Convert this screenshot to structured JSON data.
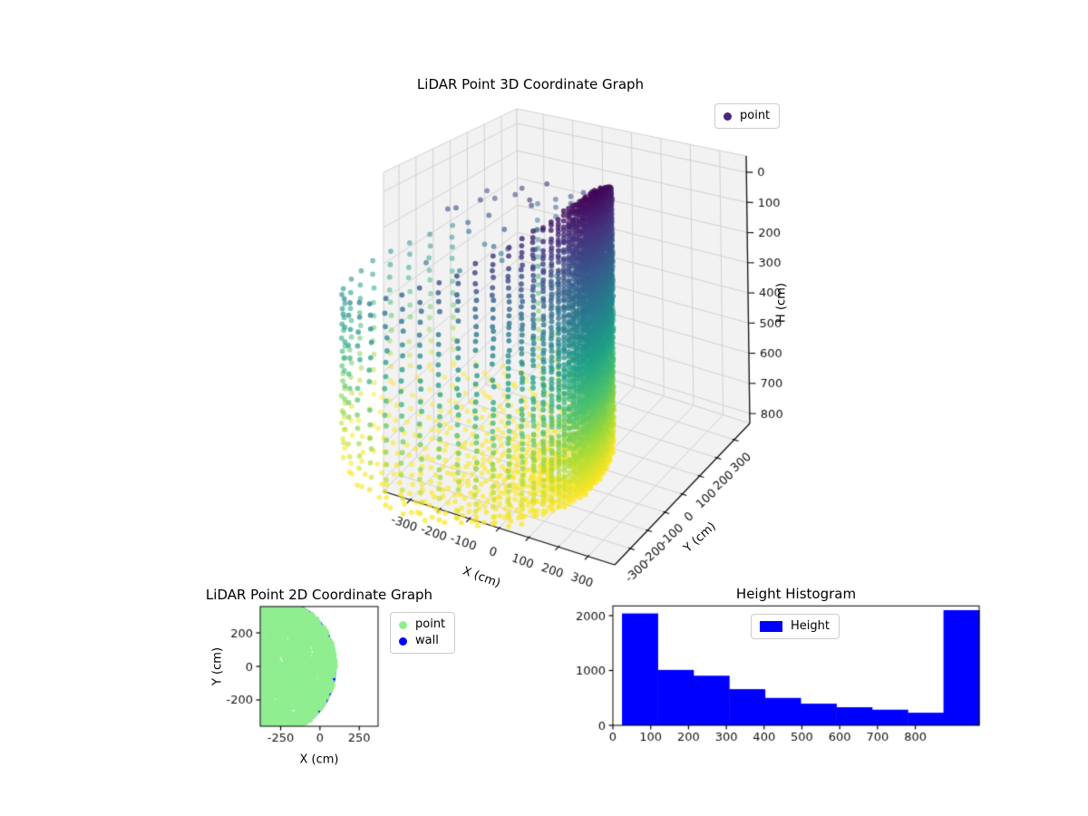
{
  "figure": {
    "background": "#ffffff"
  },
  "chart_data": [
    {
      "type": "scatter3d",
      "title": "LiDAR Point 3D Coordinate Graph",
      "xlabel": "X (cm)",
      "ylabel": "Y (cm)",
      "zlabel": "H (cm)",
      "legend": [
        {
          "label": "point",
          "color": "#482878"
        }
      ],
      "xticks": [
        -300,
        -200,
        -100,
        0,
        100,
        200,
        300
      ],
      "yticks": [
        -300,
        -200,
        -100,
        0,
        100,
        200,
        300
      ],
      "zticks": [
        0,
        100,
        200,
        300,
        400,
        500,
        600,
        700,
        800
      ],
      "xlim": [
        -390,
        390
      ],
      "ylim": [
        -390,
        390
      ],
      "zlim_top": -54,
      "zlim_bottom": 833,
      "z_axis_inverted": true,
      "colormap_viridis": [
        "#440154",
        "#46327e",
        "#365c8d",
        "#277f8e",
        "#1fa187",
        "#4ac16d",
        "#a0da39",
        "#fde725"
      ],
      "point_alpha_near": 0.82,
      "point_alpha_far": 0.42,
      "point_radius_px": 2.9,
      "lidar": {
        "sensor": [
          0,
          0,
          0
        ],
        "wall_center": [
          -300,
          0
        ],
        "wall_radius": 395,
        "floor_depth": 880,
        "azimuths": 64,
        "tan_elev_min_base": 0.384,
        "tan_elev_min_cos": -0.241,
        "wall_tan_step": 0.065,
        "floor_elev_step_deg": 1.6,
        "elev_max_deg": 87.5,
        "gap_sector_deg": [
          135,
          147
        ],
        "sparse_sector_deg": [
          120,
          128
        ],
        "sparse_dropout": 0.55,
        "noise_points": 24,
        "noise_x_range": [
          -450,
          -150
        ],
        "noise_y_range": [
          -50,
          280
        ],
        "noise_h_range": [
          80,
          380
        ],
        "seed": 7
      }
    },
    {
      "type": "scatter",
      "title": "LiDAR Point 2D Coordinate Graph",
      "xlabel": "X (cm)",
      "ylabel": "Y (cm)",
      "legend": [
        {
          "label": "point",
          "color": "#90ee90"
        },
        {
          "label": "wall",
          "color": "#0000ff"
        }
      ],
      "xticks": [
        -250,
        0,
        250
      ],
      "yticks": [
        200,
        0,
        -200
      ],
      "xlim": [
        -380,
        370
      ],
      "ylim": [
        -357,
        357
      ],
      "blob": {
        "center": [
          -300,
          0
        ],
        "radius": 395,
        "fill_points": 2600,
        "wall_ring_points": 160,
        "point_radius_px": 3.5,
        "seed": 11
      }
    },
    {
      "type": "bar",
      "title": "Height Histogram",
      "legend": [
        {
          "label": "Height",
          "color": "#0000ff"
        }
      ],
      "bin_start": 24,
      "bin_width": 94.5,
      "counts": [
        2040,
        1010,
        905,
        660,
        500,
        395,
        330,
        285,
        230,
        2100
      ],
      "xticks": [
        0,
        100,
        200,
        300,
        400,
        500,
        600,
        700,
        800
      ],
      "yticks": [
        0,
        1000,
        2000
      ],
      "xlim": [
        0,
        969
      ],
      "ylim": [
        0,
        2177
      ]
    }
  ]
}
